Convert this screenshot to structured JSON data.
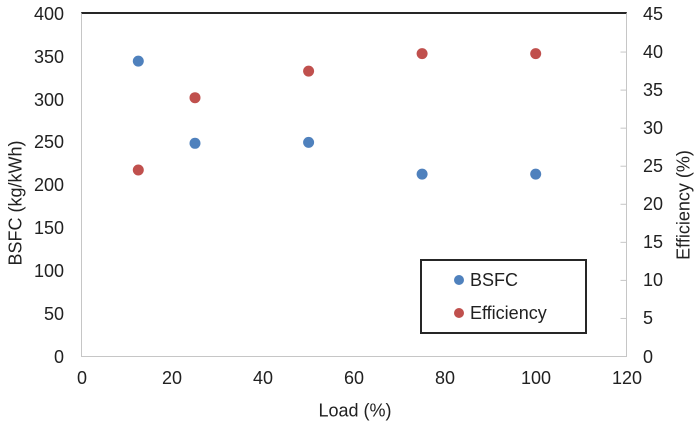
{
  "chart_data": {
    "type": "scatter",
    "title": "",
    "xlabel": "Load (%)",
    "ylabel_left": "BSFC (kg/kWh)",
    "ylabel_right": "Efficiency (%)",
    "x": [
      12.5,
      25,
      50,
      75,
      100
    ],
    "series": [
      {
        "name": "BSFC",
        "axis": "left",
        "color": "#4F81BD",
        "values": [
          345,
          249,
          250,
          213,
          213
        ]
      },
      {
        "name": "Efficiency",
        "axis": "right",
        "color": "#C0504D",
        "values": [
          24.5,
          34,
          37.5,
          39.8,
          39.8
        ]
      }
    ],
    "x_axis": {
      "min": 0,
      "max": 120,
      "step": 20,
      "tick_labels": [
        "0",
        "20",
        "40",
        "60",
        "80",
        "100",
        "120"
      ]
    },
    "y_axis_left": {
      "min": 0,
      "max": 400,
      "step": 50,
      "tick_labels": [
        "400",
        "350",
        "300",
        "250",
        "200",
        "150",
        "100",
        "50",
        "0"
      ]
    },
    "y_axis_right": {
      "min": 0,
      "max": 45,
      "step": 5,
      "tick_labels": [
        "45",
        "40",
        "35",
        "30",
        "25",
        "20",
        "15",
        "10",
        "5",
        "0"
      ]
    },
    "grid": false,
    "legend": {
      "position": "bottom-right",
      "entries": [
        "BSFC",
        "Efficiency"
      ]
    }
  },
  "colors": {
    "bsfc_marker": "#4F81BD",
    "efficiency_marker": "#C0504D",
    "axis_text": "#212121",
    "plot_border_top": "#262626",
    "plot_border_light": "#C6C6C6",
    "legend_border": "#262626"
  }
}
